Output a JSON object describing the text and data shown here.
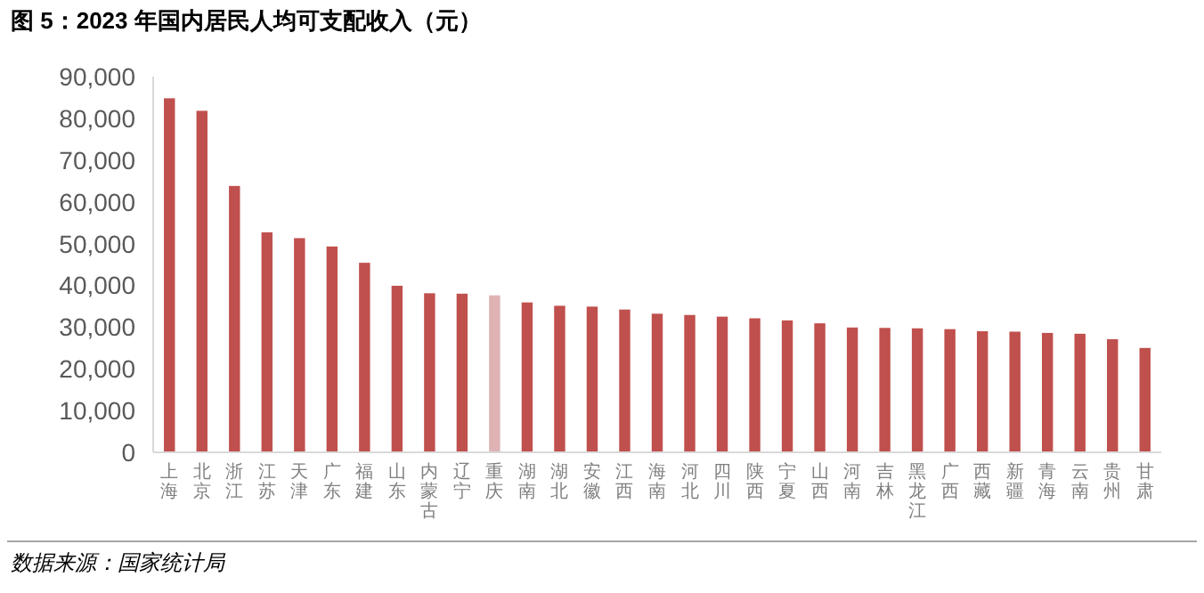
{
  "chart_data": {
    "type": "bar",
    "title": "图 5：2023 年国内居民人均可支配收入（元）",
    "categories": [
      "上海",
      "北京",
      "浙江",
      "江苏",
      "天津",
      "广东",
      "福建",
      "山东",
      "内蒙古",
      "辽宁",
      "重庆",
      "湖南",
      "湖北",
      "安徽",
      "江西",
      "海南",
      "河北",
      "四川",
      "陕西",
      "宁夏",
      "山西",
      "河南",
      "吉林",
      "黑龙江",
      "广西",
      "西藏",
      "新疆",
      "青海",
      "云南",
      "贵州",
      "甘肃"
    ],
    "values": [
      84800,
      81800,
      63800,
      52700,
      51300,
      49300,
      45400,
      39900,
      38100,
      38000,
      37600,
      35900,
      35100,
      34900,
      34200,
      33200,
      32900,
      32500,
      32100,
      31600,
      30900,
      29900,
      29800,
      29700,
      29500,
      29000,
      28900,
      28600,
      28400,
      27100,
      25000
    ],
    "colors": [
      "#c0504d",
      "#c0504d",
      "#c0504d",
      "#c0504d",
      "#c0504d",
      "#c0504d",
      "#c0504d",
      "#c0504d",
      "#c0504d",
      "#c0504d",
      "#dfb3b3",
      "#c0504d",
      "#c0504d",
      "#c0504d",
      "#c0504d",
      "#c0504d",
      "#c0504d",
      "#c0504d",
      "#c0504d",
      "#c0504d",
      "#c0504d",
      "#c0504d",
      "#c0504d",
      "#c0504d",
      "#c0504d",
      "#c0504d",
      "#c0504d",
      "#c0504d",
      "#c0504d",
      "#c0504d",
      "#c0504d"
    ],
    "ylim": [
      0,
      90000
    ],
    "yticks": [
      {
        "value": 0,
        "label": "0"
      },
      {
        "value": 10000,
        "label": "10,000"
      },
      {
        "value": 20000,
        "label": "20,000"
      },
      {
        "value": 30000,
        "label": "30,000"
      },
      {
        "value": 40000,
        "label": "40,000"
      },
      {
        "value": 50000,
        "label": "50,000"
      },
      {
        "value": 60000,
        "label": "60,000"
      },
      {
        "value": 70000,
        "label": "70,000"
      },
      {
        "value": 80000,
        "label": "80,000"
      },
      {
        "value": 90000,
        "label": "90,000"
      }
    ],
    "grid": false,
    "annotations": [
      "数据来源：国家统计局"
    ]
  }
}
